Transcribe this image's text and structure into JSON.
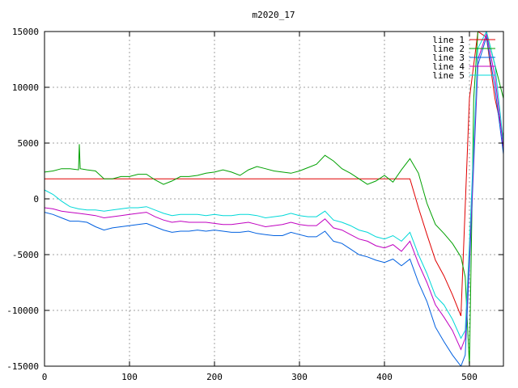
{
  "chart_data": {
    "type": "line",
    "title": "m2020_17",
    "xlabel": "",
    "ylabel": "",
    "xlim": [
      0,
      540
    ],
    "ylim": [
      -15000,
      15000
    ],
    "grid": true,
    "legend_position": "top-right",
    "x_ticks": [
      0,
      100,
      200,
      300,
      400,
      500
    ],
    "x_tick_labels": [
      "0",
      "100",
      "200",
      "300",
      "400",
      "500"
    ],
    "y_ticks": [
      -15000,
      -10000,
      -5000,
      0,
      5000,
      10000,
      15000
    ],
    "y_tick_labels": [
      "-15000",
      "-10000",
      "-5000",
      "0",
      "5000",
      "10000",
      "15000"
    ],
    "series": [
      {
        "name": "line 1",
        "color": "#e00000",
        "x": [
          0,
          100,
          200,
          300,
          400,
          430,
          440,
          450,
          460,
          470,
          480,
          490,
          500,
          510,
          520,
          530,
          540
        ],
        "y": [
          1800,
          1800,
          1800,
          1800,
          1800,
          1800,
          -800,
          -3200,
          -5500,
          -6900,
          -8600,
          -10500,
          9000,
          15000,
          14500,
          9000,
          5500
        ]
      },
      {
        "name": "line 2",
        "color": "#00a000",
        "x": [
          0,
          10,
          20,
          30,
          40,
          41,
          42,
          50,
          60,
          70,
          80,
          90,
          100,
          110,
          120,
          130,
          140,
          150,
          160,
          170,
          180,
          190,
          200,
          210,
          220,
          230,
          240,
          250,
          260,
          270,
          280,
          290,
          300,
          310,
          320,
          330,
          340,
          350,
          360,
          370,
          380,
          390,
          400,
          410,
          420,
          430,
          440,
          450,
          460,
          470,
          480,
          490,
          495,
          500,
          505,
          510,
          520,
          530,
          540
        ],
        "y": [
          2400,
          2500,
          2700,
          2700,
          2600,
          4900,
          2700,
          2600,
          2500,
          1800,
          1800,
          2000,
          2000,
          2200,
          2200,
          1700,
          1300,
          1600,
          2000,
          2000,
          2100,
          2300,
          2400,
          2600,
          2400,
          2100,
          2600,
          2900,
          2700,
          2500,
          2400,
          2300,
          2500,
          2800,
          3100,
          3900,
          3400,
          2700,
          2300,
          1800,
          1300,
          1600,
          2100,
          1500,
          2600,
          3600,
          2300,
          -400,
          -2300,
          -3100,
          -4000,
          -5200,
          -7000,
          -15000,
          9000,
          15000,
          15000,
          12000,
          9000
        ]
      },
      {
        "name": "line 3",
        "color": "#0060e0",
        "x": [
          0,
          10,
          20,
          30,
          40,
          50,
          60,
          70,
          80,
          90,
          100,
          110,
          120,
          130,
          140,
          150,
          160,
          170,
          180,
          190,
          200,
          210,
          220,
          230,
          240,
          250,
          260,
          270,
          280,
          290,
          300,
          310,
          320,
          330,
          340,
          350,
          360,
          370,
          380,
          390,
          400,
          410,
          420,
          430,
          440,
          450,
          460,
          470,
          480,
          490,
          495,
          500,
          510,
          520,
          530,
          540
        ],
        "y": [
          -1200,
          -1400,
          -1700,
          -2000,
          -2000,
          -2100,
          -2500,
          -2800,
          -2600,
          -2500,
          -2400,
          -2300,
          -2200,
          -2500,
          -2800,
          -3000,
          -2900,
          -2900,
          -2800,
          -2900,
          -2800,
          -2900,
          -3000,
          -3000,
          -2900,
          -3100,
          -3200,
          -3300,
          -3300,
          -3000,
          -3200,
          -3400,
          -3400,
          -2900,
          -3800,
          -4000,
          -4500,
          -5000,
          -5200,
          -5500,
          -5700,
          -5400,
          -6000,
          -5400,
          -7500,
          -9200,
          -11500,
          -12800,
          -14000,
          -15000,
          -14000,
          -6000,
          12000,
          14500,
          10000,
          4000
        ]
      },
      {
        "name": "line 4",
        "color": "#c000c0",
        "x": [
          0,
          10,
          20,
          30,
          40,
          50,
          60,
          70,
          80,
          90,
          100,
          110,
          120,
          130,
          140,
          150,
          160,
          170,
          180,
          190,
          200,
          210,
          220,
          230,
          240,
          250,
          260,
          270,
          280,
          290,
          300,
          310,
          320,
          330,
          340,
          350,
          360,
          370,
          380,
          390,
          400,
          410,
          420,
          430,
          440,
          450,
          460,
          470,
          480,
          490,
          495,
          500,
          510,
          520,
          530,
          540
        ],
        "y": [
          -800,
          -900,
          -1100,
          -1200,
          -1300,
          -1400,
          -1500,
          -1700,
          -1600,
          -1500,
          -1400,
          -1300,
          -1200,
          -1600,
          -1900,
          -2100,
          -2000,
          -2100,
          -2100,
          -2100,
          -2200,
          -2300,
          -2300,
          -2200,
          -2100,
          -2300,
          -2500,
          -2400,
          -2300,
          -2100,
          -2300,
          -2400,
          -2400,
          -1800,
          -2600,
          -2800,
          -3200,
          -3600,
          -3800,
          -4200,
          -4400,
          -4100,
          -4700,
          -3800,
          -5800,
          -7500,
          -9500,
          -10600,
          -11800,
          -13500,
          -12500,
          -5000,
          12500,
          14800,
          11000,
          4500
        ]
      },
      {
        "name": "line 5",
        "color": "#00d8d8",
        "x": [
          0,
          10,
          20,
          30,
          40,
          50,
          60,
          70,
          80,
          90,
          100,
          110,
          120,
          130,
          140,
          150,
          160,
          170,
          180,
          190,
          200,
          210,
          220,
          230,
          240,
          250,
          260,
          270,
          280,
          290,
          300,
          310,
          320,
          330,
          340,
          350,
          360,
          370,
          380,
          390,
          400,
          410,
          420,
          430,
          440,
          450,
          460,
          470,
          480,
          490,
          495,
          500,
          510,
          520,
          530,
          540
        ],
        "y": [
          800,
          400,
          -200,
          -700,
          -900,
          -1000,
          -1000,
          -1100,
          -1000,
          -900,
          -800,
          -800,
          -700,
          -1000,
          -1300,
          -1500,
          -1400,
          -1400,
          -1400,
          -1500,
          -1400,
          -1500,
          -1500,
          -1400,
          -1400,
          -1500,
          -1700,
          -1600,
          -1500,
          -1300,
          -1500,
          -1600,
          -1600,
          -1100,
          -1900,
          -2100,
          -2400,
          -2800,
          -3000,
          -3400,
          -3600,
          -3300,
          -3800,
          -3000,
          -5000,
          -6700,
          -8700,
          -9500,
          -10800,
          -12500,
          -11800,
          -4000,
          13500,
          15000,
          12000,
          5000
        ]
      }
    ]
  }
}
